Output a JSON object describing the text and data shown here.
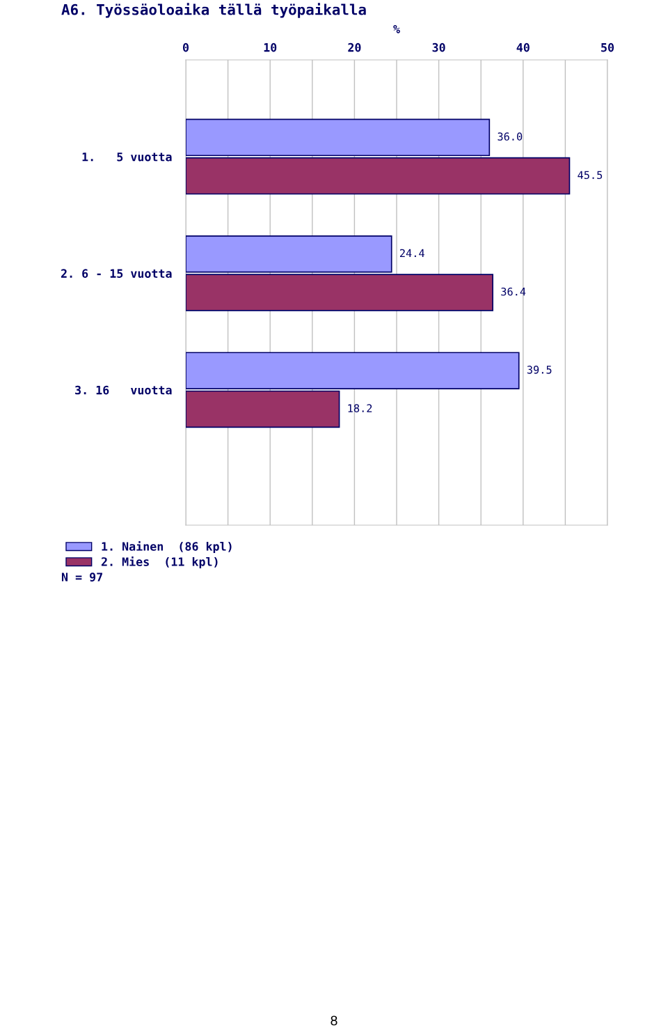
{
  "chart_data": {
    "type": "bar",
    "orientation": "horizontal",
    "title": "A6. Työssäoloaika tällä työpaikalla",
    "xlabel": "%",
    "categories": [
      "1.   5 vuotta",
      "2. 6 - 15 vuotta",
      "3. 16   vuotta"
    ],
    "series": [
      {
        "name": "1. Nainen  (86 kpl)",
        "color": "#9999ff",
        "values": [
          36.0,
          24.4,
          39.5
        ],
        "value_labels": [
          "36.0",
          "24.4",
          "39.5"
        ]
      },
      {
        "name": "2. Mies  (11 kpl)",
        "color": "#993366",
        "values": [
          45.5,
          36.4,
          18.2
        ],
        "value_labels": [
          "45.5",
          "36.4",
          "18.2"
        ]
      }
    ],
    "xlim": [
      0,
      50
    ],
    "xticks": [
      0,
      {
        "value": 5,
        "label": null
      },
      10,
      {
        "value": 15,
        "label": null
      },
      20,
      {
        "value": 25,
        "label": null
      },
      30,
      {
        "value": 35,
        "label": null
      },
      40,
      {
        "value": 45,
        "label": null
      },
      50
    ],
    "grid": "x",
    "legend": "bottom left",
    "annotations": [
      "N = 97",
      "8"
    ]
  }
}
